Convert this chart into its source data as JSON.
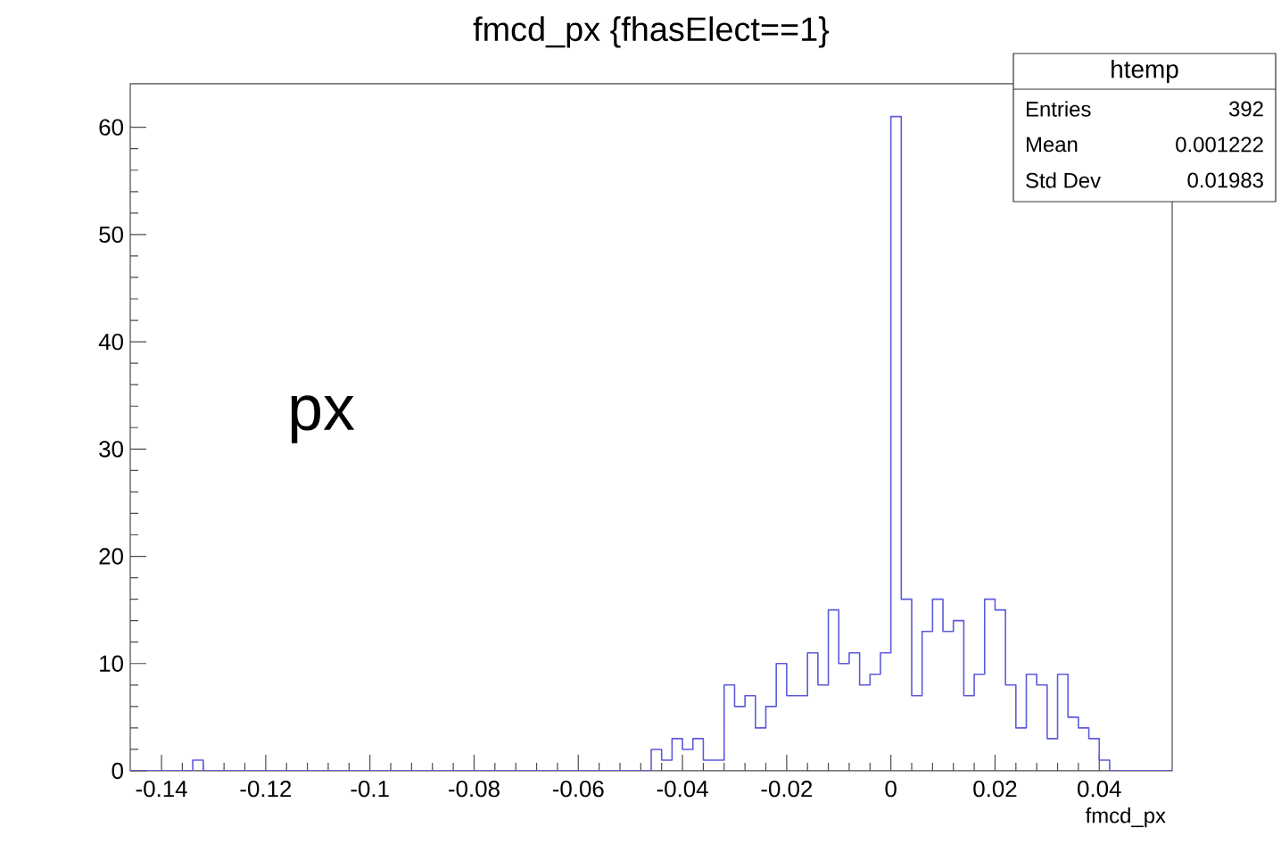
{
  "chart_data": {
    "type": "histogram",
    "title": "fmcd_px {fhasElect==1}",
    "xlabel": "fmcd_px",
    "annotations": [
      "px",
      "htemp",
      "Entries",
      "392",
      "Mean",
      "0.001222",
      "Std Dev",
      "0.01983"
    ],
    "color": "#5b5bdc",
    "bins": [
      -0.146,
      -0.144,
      -0.142,
      -0.14,
      -0.138,
      -0.136,
      -0.134,
      -0.132,
      -0.13,
      -0.128,
      -0.126,
      -0.124,
      -0.122,
      -0.12,
      -0.118,
      -0.116,
      -0.114,
      -0.112,
      -0.11,
      -0.108,
      -0.106,
      -0.104,
      -0.102,
      -0.1,
      -0.098,
      -0.096,
      -0.094,
      -0.092,
      -0.09,
      -0.088,
      -0.086,
      -0.084,
      -0.082,
      -0.08,
      -0.078,
      -0.076,
      -0.074,
      -0.072,
      -0.07,
      -0.068,
      -0.066,
      -0.064,
      -0.062,
      -0.06,
      -0.058,
      -0.056,
      -0.054,
      -0.052,
      -0.05,
      -0.048,
      -0.046,
      -0.044,
      -0.042,
      -0.04,
      -0.038,
      -0.036,
      -0.034,
      -0.032,
      -0.03,
      -0.028,
      -0.026,
      -0.024,
      -0.022,
      -0.02,
      -0.018,
      -0.016,
      -0.014,
      -0.012,
      -0.01,
      -0.008,
      -0.006,
      -0.004,
      -0.002,
      0,
      0.002,
      0.004,
      0.006,
      0.008,
      0.01,
      0.012,
      0.014,
      0.016,
      0.018,
      0.02,
      0.022,
      0.024,
      0.026,
      0.028,
      0.03,
      0.032,
      0.034,
      0.036,
      0.038,
      0.04,
      0.042,
      0.044,
      0.046,
      0.048,
      0.05,
      0.052,
      0.054
    ],
    "values": [
      0,
      0,
      0,
      0,
      0,
      0,
      1,
      0,
      0,
      0,
      0,
      0,
      0,
      0,
      0,
      0,
      0,
      0,
      0,
      0,
      0,
      0,
      0,
      0,
      0,
      0,
      0,
      0,
      0,
      0,
      0,
      0,
      0,
      0,
      0,
      0,
      0,
      0,
      0,
      0,
      0,
      0,
      0,
      0,
      0,
      0,
      0,
      0,
      0,
      0,
      2,
      1,
      3,
      2,
      3,
      1,
      1,
      8,
      6,
      7,
      4,
      6,
      10,
      7,
      7,
      11,
      8,
      15,
      10,
      11,
      8,
      9,
      11,
      61,
      16,
      7,
      13,
      16,
      13,
      14,
      7,
      9,
      16,
      15,
      8,
      4,
      9,
      8,
      3,
      9,
      5,
      4,
      3,
      1,
      0,
      0,
      0,
      0,
      0,
      0
    ],
    "xlim": [
      -0.146,
      0.054
    ],
    "ylim": [
      0,
      64.05
    ],
    "xticks": [
      -0.14,
      -0.12,
      -0.1,
      -0.08,
      -0.06,
      -0.04,
      -0.02,
      0,
      0.02,
      0.04
    ],
    "yticks": [
      0,
      10,
      20,
      30,
      40,
      50,
      60
    ],
    "grid": false
  }
}
